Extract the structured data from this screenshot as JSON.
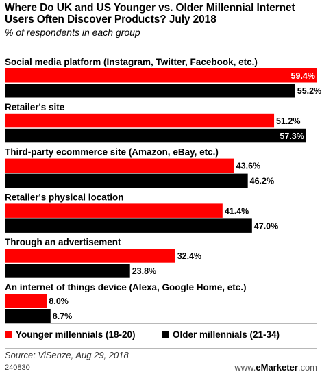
{
  "chart_data": {
    "type": "bar",
    "orientation": "horizontal",
    "title": "Where Do UK and US Younger vs. Older Millennial Internet Users Often Discover Products? July 2018",
    "subtitle": "% of respondents in each group",
    "categories": [
      "Social media platform (Instagram, Twitter, Facebook, etc.)",
      "Retailer's site",
      "Third-party ecommerce site (Amazon, eBay, etc.)",
      "Retailer's physical location",
      "Through an advertisement",
      "An internet of things device (Alexa, Google Home, etc.)"
    ],
    "series": [
      {
        "name": "Younger millennials (18-20)",
        "color": "#ff0000",
        "values": [
          59.4,
          51.2,
          43.6,
          41.4,
          32.4,
          8.0
        ],
        "labels": [
          "59.4%",
          "51.2%",
          "43.6%",
          "41.4%",
          "32.4%",
          "8.0%"
        ]
      },
      {
        "name": "Older millennials (21-34)",
        "color": "#000000",
        "values": [
          55.2,
          57.3,
          46.2,
          47.0,
          23.8,
          8.7
        ],
        "labels": [
          "55.2%",
          "57.3%",
          "46.2%",
          "47.0%",
          "23.8%",
          "8.7%"
        ]
      }
    ],
    "xlim": [
      0,
      59.4
    ],
    "legend": "bottom",
    "grid": false
  },
  "source": "Source: ViSenze, Aug 29, 2018",
  "footer_id": "240830",
  "brand": {
    "prefix": "www.",
    "name": "eMarketer",
    "suffix": ".com"
  }
}
